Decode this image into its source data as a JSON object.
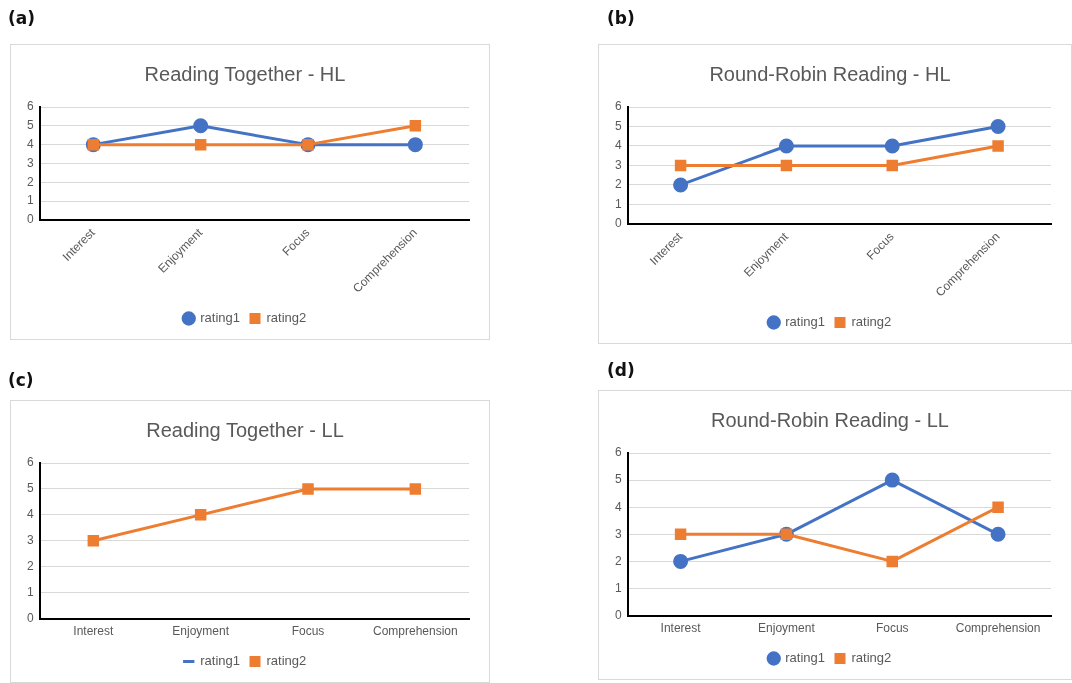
{
  "chart_data": [
    {
      "type": "line",
      "title": "Reading Together - HL",
      "annotations": [
        "(a)"
      ],
      "categories": [
        "Interest",
        "Enjoyment",
        "Focus",
        "Comprehension"
      ],
      "series": [
        {
          "name": "rating1",
          "color": "#4472c4",
          "marker": "circle",
          "values": [
            4,
            5,
            4,
            4
          ]
        },
        {
          "name": "rating2",
          "color": "#ed7d31",
          "marker": "square",
          "values": [
            4,
            4,
            4,
            5
          ]
        }
      ],
      "ylim": [
        0,
        6
      ],
      "yticks": [
        0,
        1,
        2,
        3,
        4,
        5,
        6
      ],
      "grid": "y",
      "legend": "bottom",
      "line_style": "solid"
    },
    {
      "type": "line",
      "title": "Round-Robin Reading - HL",
      "annotations": [
        "(b)"
      ],
      "categories": [
        "Interest",
        "Enjoyment",
        "Focus",
        "Comprehension"
      ],
      "series": [
        {
          "name": "rating1",
          "color": "#4472c4",
          "marker": "circle",
          "values": [
            2,
            4,
            4,
            5
          ]
        },
        {
          "name": "rating2",
          "color": "#ed7d31",
          "marker": "square",
          "values": [
            3,
            3,
            3,
            4
          ]
        }
      ],
      "ylim": [
        0,
        6
      ],
      "yticks": [
        0,
        1,
        2,
        3,
        4,
        5,
        6
      ],
      "grid": "y",
      "legend": "bottom",
      "line_style": "solid"
    },
    {
      "type": "line",
      "title": "Reading Together - LL",
      "annotations": [
        "(c)"
      ],
      "categories": [
        "Interest",
        "Enjoyment",
        "Focus",
        "Comprehension"
      ],
      "series": [
        {
          "name": "rating1",
          "color": "#4472c4",
          "marker": "none",
          "values": [
            null,
            null,
            null,
            null
          ]
        },
        {
          "name": "rating2",
          "color": "#ed7d31",
          "marker": "square",
          "values": [
            3,
            4,
            5,
            5
          ]
        }
      ],
      "ylim": [
        0,
        6
      ],
      "yticks": [
        0,
        1,
        2,
        3,
        4,
        5,
        6
      ],
      "grid": "y",
      "legend": "bottom",
      "line_style": "solid"
    },
    {
      "type": "line",
      "title": "Round-Robin Reading - LL",
      "annotations": [
        "(d)"
      ],
      "categories": [
        "Interest",
        "Enjoyment",
        "Focus",
        "Comprehension"
      ],
      "series": [
        {
          "name": "rating1",
          "color": "#4472c4",
          "marker": "circle",
          "values": [
            2,
            3,
            5,
            3
          ]
        },
        {
          "name": "rating2",
          "color": "#ed7d31",
          "marker": "square",
          "values": [
            3,
            3,
            2,
            4
          ]
        }
      ],
      "ylim": [
        0,
        6
      ],
      "yticks": [
        0,
        1,
        2,
        3,
        4,
        5,
        6
      ],
      "grid": "y",
      "legend": "bottom",
      "line_style": "solid"
    }
  ]
}
